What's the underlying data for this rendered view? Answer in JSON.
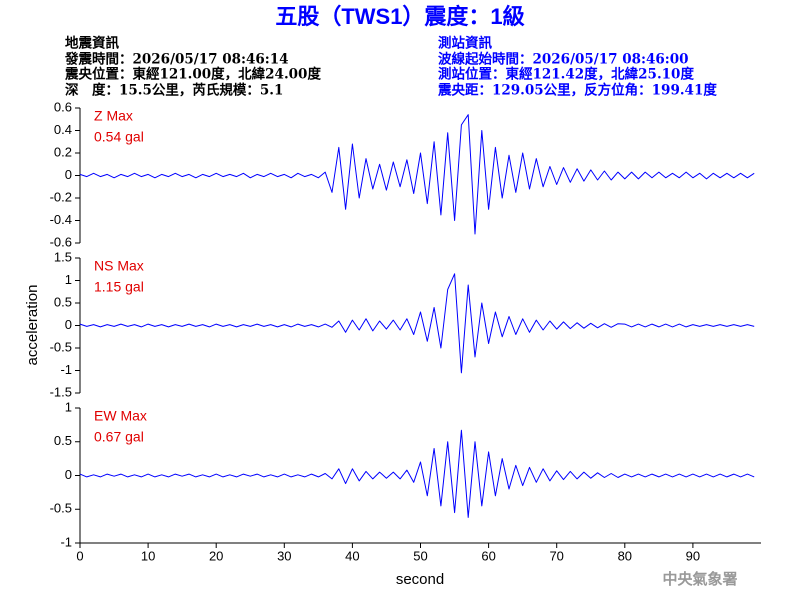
{
  "header": {
    "title": "五股（TWS1）震度：1級",
    "left": [
      "地震資訊",
      "發震時間：2026/05/17 08:46:14",
      "震央位置：東經121.00度，北緯24.00度",
      "深　度：15.5公里，芮氏規模：5.1"
    ],
    "right": [
      "測站資訊",
      "波線起始時間：2026/05/17 08:46:00",
      "測站位置：東經121.42度，北緯25.10度",
      "震央距：129.05公里，反方位角：199.41度"
    ],
    "footer": "中央氣象署"
  },
  "chart_data": {
    "type": "line",
    "color": "#0000ff",
    "xlabel": "second",
    "ylabel": "acceleration",
    "xlim": [
      0,
      100
    ],
    "xticks": [
      0,
      10,
      20,
      30,
      40,
      50,
      60,
      70,
      80,
      90
    ],
    "x": [
      0,
      1,
      2,
      3,
      4,
      5,
      6,
      7,
      8,
      9,
      10,
      11,
      12,
      13,
      14,
      15,
      16,
      17,
      18,
      19,
      20,
      21,
      22,
      23,
      24,
      25,
      26,
      27,
      28,
      29,
      30,
      31,
      32,
      33,
      34,
      35,
      36,
      37,
      38,
      39,
      40,
      41,
      42,
      43,
      44,
      45,
      46,
      47,
      48,
      49,
      50,
      51,
      52,
      53,
      54,
      55,
      56,
      57,
      58,
      59,
      60,
      61,
      62,
      63,
      64,
      65,
      66,
      67,
      68,
      69,
      70,
      71,
      72,
      73,
      74,
      75,
      76,
      77,
      78,
      79,
      80,
      81,
      82,
      83,
      84,
      85,
      86,
      87,
      88,
      89,
      90,
      91,
      92,
      93,
      94,
      95,
      96,
      97,
      98,
      99
    ],
    "panels": [
      {
        "label": "Z Max",
        "max_label": "0.54 gal",
        "ylim": [
          -0.6,
          0.6
        ],
        "yticks": [
          -0.6,
          -0.4,
          -0.2,
          0,
          0.2,
          0.4,
          0.6
        ],
        "values": [
          0.01,
          -0.01,
          0.02,
          -0.01,
          0.01,
          -0.02,
          0.01,
          -0.01,
          0.02,
          -0.01,
          0.01,
          -0.02,
          0.01,
          -0.01,
          0.02,
          -0.01,
          0.01,
          -0.02,
          0.01,
          -0.01,
          0.02,
          -0.01,
          0.01,
          -0.01,
          0.02,
          -0.02,
          0.01,
          -0.01,
          0.02,
          -0.01,
          0.01,
          -0.02,
          0.02,
          -0.01,
          0.01,
          -0.02,
          0.03,
          -0.15,
          0.25,
          -0.3,
          0.28,
          -0.2,
          0.15,
          -0.12,
          0.1,
          -0.13,
          0.12,
          -0.1,
          0.14,
          -0.16,
          0.2,
          -0.25,
          0.3,
          -0.35,
          0.38,
          -0.4,
          0.45,
          0.54,
          -0.52,
          0.4,
          -0.3,
          0.25,
          -0.2,
          0.18,
          -0.15,
          0.2,
          -0.12,
          0.15,
          -0.1,
          0.08,
          -0.08,
          0.07,
          -0.06,
          0.06,
          -0.05,
          0.05,
          -0.04,
          0.04,
          -0.04,
          0.03,
          -0.03,
          0.03,
          -0.03,
          0.03,
          -0.02,
          0.03,
          -0.02,
          0.02,
          -0.02,
          0.03,
          -0.02,
          0.02,
          -0.03,
          0.02,
          -0.02,
          0.02,
          -0.02,
          0.02,
          -0.02,
          0.02
        ]
      },
      {
        "label": "NS Max",
        "max_label": "1.15 gal",
        "ylim": [
          -1.5,
          1.5
        ],
        "yticks": [
          -1.5,
          -1,
          -0.5,
          0,
          0.5,
          1,
          1.5
        ],
        "values": [
          0.03,
          -0.02,
          0.02,
          -0.03,
          0.02,
          -0.02,
          0.03,
          -0.02,
          0.02,
          -0.03,
          0.03,
          -0.02,
          0.02,
          -0.03,
          0.02,
          -0.02,
          0.03,
          -0.02,
          0.02,
          -0.03,
          0.03,
          -0.02,
          0.02,
          -0.03,
          0.02,
          -0.02,
          0.03,
          -0.02,
          0.02,
          -0.03,
          0.02,
          -0.03,
          0.03,
          -0.02,
          0.02,
          -0.03,
          0.03,
          -0.04,
          0.1,
          -0.15,
          0.12,
          -0.1,
          0.15,
          -0.12,
          0.1,
          -0.08,
          0.12,
          -0.1,
          0.15,
          -0.2,
          0.3,
          -0.35,
          0.4,
          -0.5,
          0.8,
          1.15,
          -1.05,
          0.9,
          -0.7,
          0.5,
          -0.4,
          0.3,
          -0.25,
          0.2,
          -0.2,
          0.15,
          -0.15,
          0.12,
          -0.1,
          0.1,
          -0.08,
          0.08,
          -0.07,
          0.06,
          -0.06,
          0.05,
          -0.05,
          0.04,
          -0.04,
          0.04,
          0.03,
          -0.03,
          0.03,
          -0.03,
          0.03,
          -0.03,
          0.03,
          -0.03,
          0.03,
          -0.03,
          0.02,
          -0.02,
          0.02,
          -0.02,
          0.02,
          -0.02,
          0.02,
          -0.02,
          0.02,
          -0.02
        ]
      },
      {
        "label": "EW Max",
        "max_label": "0.67 gal",
        "ylim": [
          -1,
          1
        ],
        "yticks": [
          -1,
          -0.5,
          0,
          0.5,
          1
        ],
        "values": [
          0.02,
          -0.02,
          0.01,
          -0.02,
          0.02,
          -0.01,
          0.02,
          -0.02,
          0.01,
          -0.02,
          0.02,
          -0.02,
          0.01,
          -0.02,
          0.02,
          -0.01,
          0.02,
          -0.02,
          0.01,
          -0.02,
          0.02,
          -0.02,
          0.01,
          -0.02,
          0.02,
          -0.01,
          0.02,
          -0.02,
          0.01,
          -0.02,
          0.02,
          -0.02,
          0.01,
          -0.02,
          0.02,
          -0.02,
          0.03,
          -0.05,
          0.1,
          -0.12,
          0.1,
          -0.08,
          0.06,
          -0.05,
          0.05,
          -0.04,
          0.05,
          -0.05,
          0.08,
          -0.1,
          0.2,
          -0.3,
          0.4,
          -0.45,
          0.5,
          -0.55,
          0.67,
          -0.62,
          0.5,
          -0.45,
          0.35,
          -0.3,
          0.25,
          -0.2,
          0.15,
          -0.15,
          0.12,
          -0.1,
          0.1,
          -0.08,
          0.07,
          -0.06,
          0.06,
          -0.05,
          0.05,
          -0.04,
          0.04,
          -0.03,
          0.03,
          -0.03,
          0.02,
          -0.02,
          0.02,
          -0.02,
          0.02,
          -0.02,
          0.02,
          -0.02,
          0.02,
          -0.02,
          0.02,
          -0.02,
          0.02,
          -0.02,
          0.02,
          -0.02,
          0.02,
          -0.02,
          0.02,
          -0.02
        ]
      }
    ]
  }
}
